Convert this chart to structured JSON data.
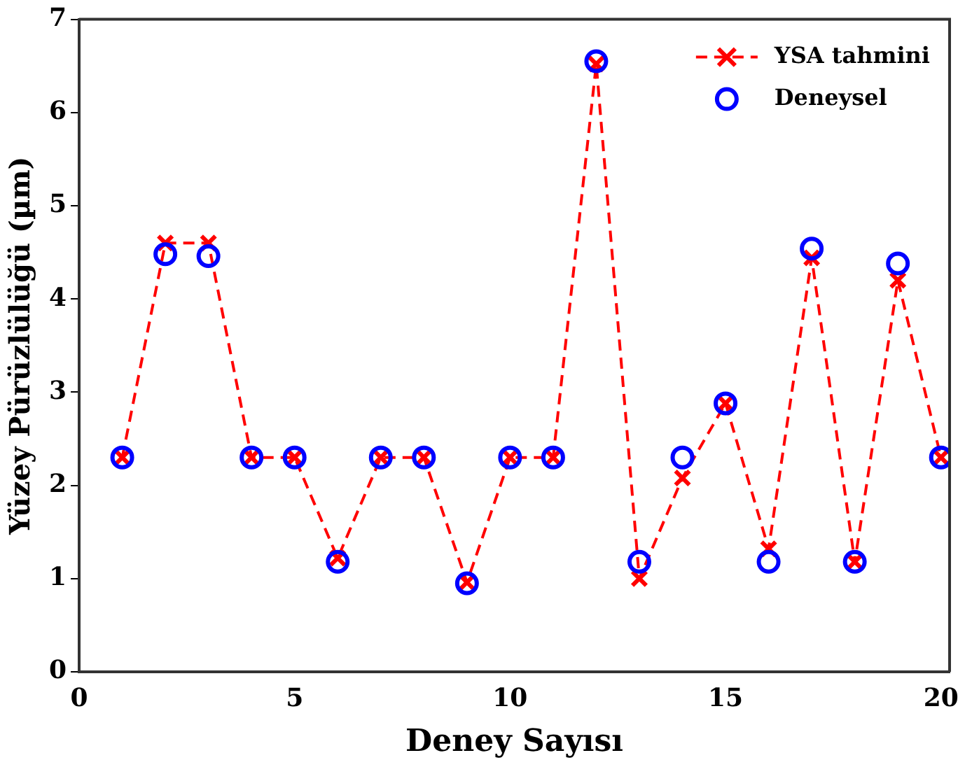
{
  "chart_data": {
    "type": "line",
    "xlabel": "Deney Sayısı",
    "ylabel": "Yüzey Pürüzlülüğü (µm)",
    "x": [
      1,
      2,
      3,
      4,
      5,
      6,
      7,
      8,
      9,
      10,
      11,
      12,
      13,
      14,
      15,
      16,
      17,
      18,
      19,
      20
    ],
    "xlim": [
      0,
      20.2
    ],
    "xticks": [
      0,
      5,
      10,
      15,
      20
    ],
    "ylim": [
      0,
      7
    ],
    "yticks": [
      0,
      1,
      2,
      3,
      4,
      5,
      6,
      7
    ],
    "grid": false,
    "legend": "top right",
    "series": [
      {
        "name": "YSA tahmini",
        "color": "#ff0000",
        "marker": "cross",
        "line_style": "dashed",
        "values": [
          2.3,
          4.6,
          4.6,
          2.3,
          2.3,
          1.22,
          2.3,
          2.3,
          0.96,
          2.3,
          2.3,
          6.52,
          1.0,
          2.08,
          2.88,
          1.32,
          4.44,
          1.18,
          4.2,
          2.3
        ]
      },
      {
        "name": "Deneysel",
        "type": "scatter",
        "color": "#0000ff",
        "marker": "circle",
        "values": [
          2.3,
          4.48,
          4.46,
          2.3,
          2.3,
          1.18,
          2.3,
          2.3,
          0.95,
          2.3,
          2.3,
          6.55,
          1.18,
          2.3,
          2.88,
          1.18,
          4.54,
          1.18,
          4.38,
          2.3
        ]
      }
    ]
  }
}
